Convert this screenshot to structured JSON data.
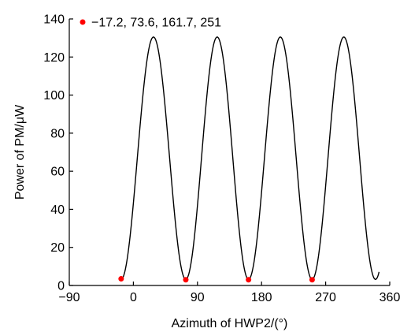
{
  "chart_data": {
    "type": "line",
    "title": "",
    "xlabel": "Azimuth of HWP2/(°)",
    "ylabel": "Power of PM/μW",
    "xlim": [
      -90,
      360
    ],
    "ylim": [
      0,
      140
    ],
    "x_ticks": [
      -90,
      0,
      90,
      180,
      270,
      360
    ],
    "x_tick_labels": [
      "−90",
      "0",
      "90",
      "180",
      "270",
      "360"
    ],
    "y_ticks": [
      0,
      20,
      40,
      60,
      80,
      100,
      120,
      140
    ],
    "y_tick_labels": [
      "0",
      "20",
      "40",
      "60",
      "80",
      "100",
      "120",
      "140"
    ],
    "grid": false,
    "legend_position": "top-left",
    "series": [
      {
        "kind": "line",
        "color": "#000000",
        "curve_model": {
          "x_start": -15,
          "x_end": 345,
          "minimum_x": [
            -17.2,
            73.6,
            161.7,
            251,
            340
          ],
          "maximum_y": 130.5,
          "minimum_y": 3.2
        }
      },
      {
        "kind": "scatter",
        "color": "#ff0000",
        "legend_label": "−17.2, 73.6, 161.7, 251",
        "points": [
          {
            "x": -17.2,
            "y": 3.5
          },
          {
            "x": 73.6,
            "y": 3.0
          },
          {
            "x": 161.7,
            "y": 3.0
          },
          {
            "x": 251.0,
            "y": 3.0
          }
        ]
      }
    ]
  }
}
